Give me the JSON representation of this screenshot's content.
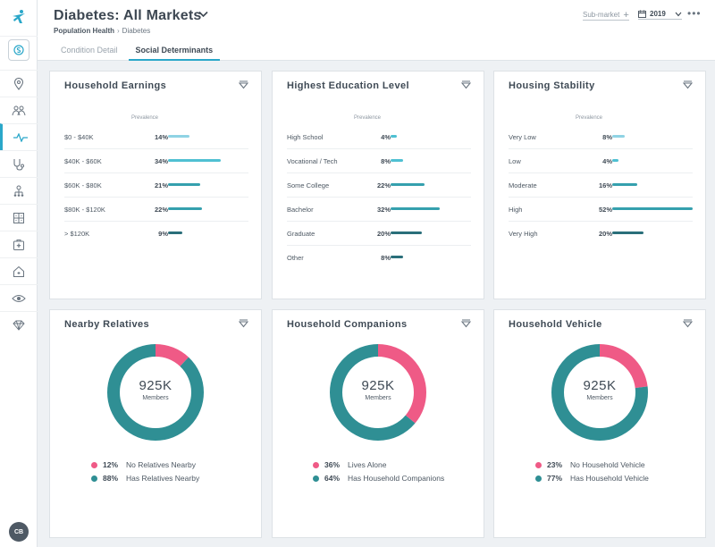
{
  "colors": {
    "accent": "#2aa7c9",
    "pink": "#ef5a86",
    "teal": "#2f8f94",
    "bar_light": "#8fd3e4",
    "bar_mid": "#4fc0d2",
    "bar_teal": "#35a0ae",
    "bar_dark": "#2a6f7a"
  },
  "sidebar": {
    "logo_icon": "brand-figure-icon",
    "items": [
      {
        "icon": "dollar-swirl-icon"
      },
      {
        "icon": "map-pin-icon"
      },
      {
        "icon": "people-icon"
      },
      {
        "icon": "pulse-icon",
        "active": true
      },
      {
        "icon": "stethoscope-icon"
      },
      {
        "icon": "org-chart-icon"
      },
      {
        "icon": "building-icon"
      },
      {
        "icon": "hospital-icon"
      },
      {
        "icon": "home-icon"
      },
      {
        "icon": "eye-icon"
      },
      {
        "icon": "diamond-icon"
      }
    ],
    "avatar_initials": "CB"
  },
  "header": {
    "title": "Diabetes: All Markets",
    "breadcrumb_root": "Population Health",
    "breadcrumb_sep": "›",
    "breadcrumb_current": "Diabetes",
    "tabs": [
      {
        "label": "Condition Detail",
        "active": false
      },
      {
        "label": "Social Determinants",
        "active": true
      }
    ],
    "submarket_label": "Sub-market",
    "year": "2019",
    "more": "•••"
  },
  "cards": {
    "earnings": {
      "title": "Household Earnings",
      "prevalence_label": "Prevalence",
      "rows": [
        {
          "label": "$0 - $40K",
          "pct": "14%",
          "value": 14
        },
        {
          "label": "$40K - $60K",
          "pct": "34%",
          "value": 34
        },
        {
          "label": "$60K - $80K",
          "pct": "21%",
          "value": 21
        },
        {
          "label": "$80K - $120K",
          "pct": "22%",
          "value": 22
        },
        {
          "label": "> $120K",
          "pct": "9%",
          "value": 9
        }
      ]
    },
    "education": {
      "title": "Highest Education Level",
      "prevalence_label": "Prevalence",
      "rows": [
        {
          "label": "High School",
          "pct": "4%",
          "value": 4
        },
        {
          "label": "Vocational / Tech",
          "pct": "8%",
          "value": 8
        },
        {
          "label": "Some College",
          "pct": "22%",
          "value": 22
        },
        {
          "label": "Bachelor",
          "pct": "32%",
          "value": 32
        },
        {
          "label": "Graduate",
          "pct": "20%",
          "value": 20
        },
        {
          "label": "Other",
          "pct": "8%",
          "value": 8
        }
      ]
    },
    "housing": {
      "title": "Housing Stability",
      "prevalence_label": "Prevalence",
      "rows": [
        {
          "label": "Very Low",
          "pct": "8%",
          "value": 8
        },
        {
          "label": "Low",
          "pct": "4%",
          "value": 4
        },
        {
          "label": "Moderate",
          "pct": "16%",
          "value": 16
        },
        {
          "label": "High",
          "pct": "52%",
          "value": 52
        },
        {
          "label": "Very High",
          "pct": "20%",
          "value": 20
        }
      ]
    },
    "relatives": {
      "title": "Nearby Relatives",
      "center_value": "925K",
      "center_label": "Members",
      "segments": [
        {
          "pct": "12%",
          "label": "No Relatives Nearby",
          "value": 12
        },
        {
          "pct": "88%",
          "label": "Has Relatives Nearby",
          "value": 88
        }
      ]
    },
    "companions": {
      "title": "Household Companions",
      "center_value": "925K",
      "center_label": "Members",
      "segments": [
        {
          "pct": "36%",
          "label": "Lives Alone",
          "value": 36
        },
        {
          "pct": "64%",
          "label": "Has Household Companions",
          "value": 64
        }
      ]
    },
    "vehicle": {
      "title": "Household Vehicle",
      "center_value": "925K",
      "center_label": "Members",
      "segments": [
        {
          "pct": "23%",
          "label": "No Household Vehicle",
          "value": 23
        },
        {
          "pct": "77%",
          "label": "Has Household Vehicle",
          "value": 77
        }
      ]
    }
  }
}
